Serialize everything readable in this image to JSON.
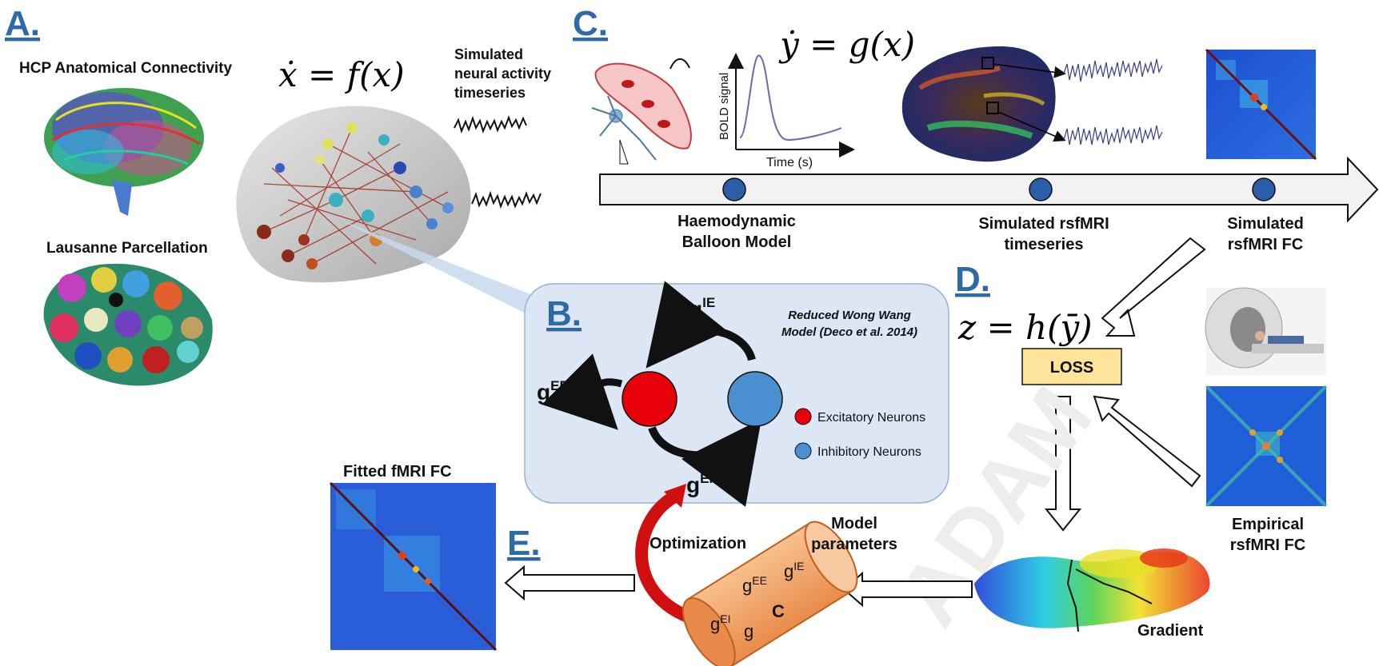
{
  "panels": {
    "a": {
      "letter": "A.",
      "anatomical_title": "HCP  Anatomical Connectivity",
      "parcellation_title": "Lausanne Parcellation",
      "equation": "ẋ = f(x)",
      "timeseries_label": [
        "Simulated",
        "neural activity",
        "timeseries"
      ]
    },
    "b": {
      "letter": "B.",
      "model_title": [
        "Reduced Wong Wang",
        "Model (Deco et al. 2014)"
      ],
      "g_ie": "g",
      "g_ie_sup": "IE",
      "g_ee": "g",
      "g_ee_sup": "EE",
      "g_ei": "g",
      "g_ei_sup": "EI",
      "legend_excitatory": "Excitatory Neurons",
      "legend_inhibitory": "Inhibitory Neurons",
      "color_excitatory": "#e8000b",
      "color_inhibitory": "#4a8fd0",
      "box_fill": "#dce6f4"
    },
    "c": {
      "letter": "C.",
      "equation": "ẏ = g(x)",
      "bold_axis_y": "BOLD signal",
      "bold_axis_x": "Time (s)",
      "stage1": [
        "Haemodynamic",
        "Balloon Model"
      ],
      "stage2": [
        "Simulated rsfMRI",
        "timeseries"
      ],
      "stage3": [
        "Simulated",
        "rsfMRI FC"
      ]
    },
    "d": {
      "letter": "D.",
      "equation": "z = h(ȳ)",
      "loss": "LOSS",
      "empirical": [
        "Empirical",
        "rsfMRI FC"
      ],
      "gradient": "Gradient",
      "watermark": "ADAM"
    },
    "e": {
      "letter": "E.",
      "fitted": "Fitted fMRI FC",
      "optimization": "Optimization",
      "model_params": [
        "Model",
        "parameters"
      ],
      "params": {
        "g_ee": "EE",
        "g_ie": "IE",
        "g_ei": "EI",
        "g": "g",
        "c": "C"
      }
    }
  }
}
